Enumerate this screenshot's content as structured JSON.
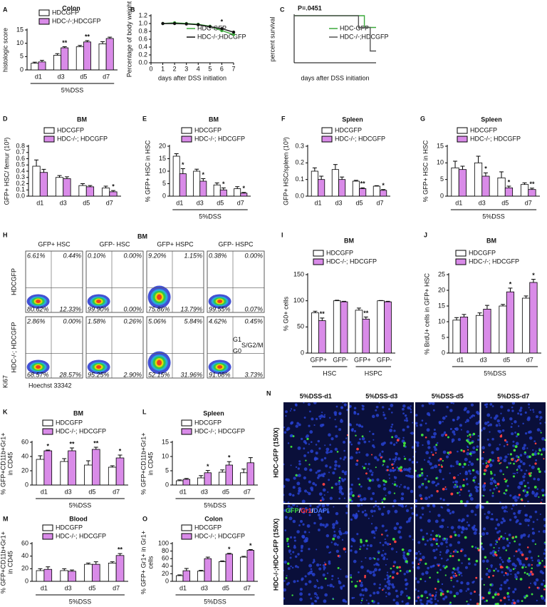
{
  "chart_data": [
    {
      "label": "A",
      "type": "bar",
      "title": "Colon",
      "ylabel": "histologic score",
      "categories": [
        "d1",
        "d3",
        "d5",
        "d7"
      ],
      "group_label": "5%DSS",
      "ylim": [
        0,
        15
      ],
      "yticks": [
        0,
        5,
        10,
        15
      ],
      "series": [
        {
          "name": "HDCGFP",
          "color": "#ffffff",
          "values": [
            2.5,
            5.5,
            8.7,
            9.8
          ],
          "errors": [
            0.4,
            0.6,
            0.5,
            0.8
          ]
        },
        {
          "name": "HDC-/-;HDCGFP",
          "color": "#d98be8",
          "values": [
            3,
            8.3,
            10.5,
            11.8
          ],
          "errors": [
            0.6,
            0.4,
            0.5,
            0.5
          ],
          "significance": [
            null,
            "**",
            "**",
            null
          ]
        }
      ]
    },
    {
      "label": "B",
      "type": "line",
      "ylabel": "Percentage of body weight",
      "xlabel": "days after DSS initiation",
      "markers": true,
      "x": [
        1,
        2,
        3,
        4,
        5,
        6,
        7
      ],
      "xlim": [
        0,
        7
      ],
      "xticks": [
        0,
        1,
        2,
        3,
        4,
        5,
        6,
        7
      ],
      "ylim": [
        0,
        1.2
      ],
      "yticks": [
        {
          "value": 0,
          "label": "0.0"
        },
        0.2,
        0.4,
        0.6,
        0.8,
        {
          "value": 1,
          "label": "1.0"
        },
        1.2
      ],
      "series": [
        {
          "name": "HDC-GFP",
          "color": "#3aa83a",
          "values": [
            1.0,
            1.02,
            1.0,
            0.98,
            0.93,
            0.82,
            0.72
          ]
        },
        {
          "name": "HDC-/-;HDCGFP",
          "color": "#111111",
          "values": [
            1.0,
            1.0,
            0.99,
            0.97,
            0.92,
            0.87,
            0.78
          ],
          "significance": [
            null,
            null,
            null,
            null,
            null,
            "*",
            null
          ]
        }
      ]
    },
    {
      "label": "C",
      "type": "line",
      "title": "P=.0451",
      "ylabel": "percent survival",
      "xlabel": "days after DSS initiation",
      "xlim": [
        0,
        7
      ],
      "ylim": [
        0,
        100
      ],
      "series": [
        {
          "name": "HDC-GFP",
          "color": "#3aa83a",
          "x": [
            0,
            6,
            6,
            7
          ],
          "values": [
            100,
            100,
            75,
            75
          ]
        },
        {
          "name": "HDC-/-;HDCGFP",
          "color": "#555555",
          "x": [
            0,
            5.5,
            5.5,
            6.5,
            6.5,
            7
          ],
          "values": [
            100,
            100,
            75,
            75,
            25,
            25
          ]
        }
      ]
    },
    {
      "label": "D",
      "type": "bar",
      "title": "BM",
      "ylabel": "GFP+ HSC/ femur (10³)",
      "categories": [
        "d1",
        "d3",
        "d5",
        "d7"
      ],
      "ylim": [
        0,
        0.8
      ],
      "yticks": [
        {
          "value": 0,
          "label": "0.0"
        },
        0.1,
        0.2,
        0.3,
        0.4,
        0.5,
        0.6,
        0.7,
        0.8
      ],
      "series": [
        {
          "name": "HDCGFP",
          "color": "#ffffff",
          "values": [
            0.48,
            0.3,
            0.17,
            0.13
          ],
          "errors": [
            0.1,
            0.03,
            0.03,
            0.03
          ]
        },
        {
          "name": "HDC-/-; HDCGFP",
          "color": "#d98be8",
          "values": [
            0.38,
            0.28,
            0.15,
            0.07
          ],
          "errors": [
            0.05,
            0.03,
            0.02,
            0.02
          ],
          "significance": [
            null,
            null,
            null,
            "*"
          ]
        }
      ]
    },
    {
      "label": "E",
      "type": "bar",
      "title": "BM",
      "ylabel": "% GFP+ HSC in HSC",
      "categories": [
        "d1",
        "d3",
        "d5",
        "d7"
      ],
      "group_label": "5%DSS",
      "ylim": [
        0,
        20
      ],
      "yticks": [
        0,
        5,
        10,
        15,
        20
      ],
      "series": [
        {
          "name": "HDCGFP",
          "color": "#ffffff",
          "values": [
            16,
            10,
            4.5,
            3
          ],
          "errors": [
            1,
            0.8,
            0.8,
            0.8
          ]
        },
        {
          "name": "HDC-/-; HDCGFP",
          "color": "#d98be8",
          "values": [
            9,
            6,
            2.5,
            1.2
          ],
          "errors": [
            2,
            1,
            0.8,
            0.3
          ],
          "significance": [
            "*",
            "*",
            "*",
            "*"
          ]
        }
      ]
    },
    {
      "label": "F",
      "type": "bar",
      "title": "Spleen",
      "ylabel": "GFP+ HSC/spleen (10³)",
      "categories": [
        "d1",
        "d3",
        "d5",
        "d7"
      ],
      "ylim": [
        0,
        0.3
      ],
      "yticks": [
        {
          "value": 0,
          "label": "0.0"
        },
        0.1,
        0.2,
        0.3
      ],
      "series": [
        {
          "name": "HDCGFP",
          "color": "#ffffff",
          "values": [
            0.15,
            0.16,
            0.09,
            0.06
          ],
          "errors": [
            0.02,
            0.03,
            0.005,
            0.003
          ]
        },
        {
          "name": "HDC-/-; HDCGFP",
          "color": "#d98be8",
          "values": [
            0.1,
            0.1,
            0.045,
            0.035
          ],
          "errors": [
            0.02,
            0.015,
            0.005,
            0.005
          ],
          "significance": [
            null,
            null,
            "**",
            "*"
          ]
        }
      ]
    },
    {
      "label": "G",
      "type": "bar",
      "title": "Spleen",
      "ylabel": "% GFP+ HSC in HSC",
      "categories": [
        "d1",
        "d3",
        "d5",
        "d7"
      ],
      "group_label": "5%DSS",
      "ylim": [
        0,
        15
      ],
      "yticks": [
        0,
        5,
        10,
        15
      ],
      "series": [
        {
          "name": "HDCGFP",
          "color": "#ffffff",
          "values": [
            8.5,
            10,
            5.5,
            3.5
          ],
          "errors": [
            2,
            2,
            1.8,
            0.5
          ]
        },
        {
          "name": "HDC-/-; HDCGFP",
          "color": "#d98be8",
          "values": [
            8,
            6,
            2.5,
            2
          ],
          "errors": [
            1,
            1,
            0.5,
            0.4
          ],
          "significance": [
            null,
            "*",
            "*",
            "**"
          ]
        }
      ]
    },
    {
      "label": "I",
      "type": "bar",
      "title": "BM",
      "ylabel": "% G0+ cells",
      "categories": [
        "GFP+",
        "GFP-",
        "GFP+",
        "GFP-"
      ],
      "groups": [
        "HSC",
        "HSPC"
      ],
      "ylim": [
        0,
        150
      ],
      "yticks": [
        0,
        50,
        100,
        150
      ],
      "series": [
        {
          "name": "HDCGFP",
          "color": "#ffffff",
          "values": [
            77,
            100,
            82,
            100
          ],
          "errors": [
            3,
            1,
            4,
            0.5
          ]
        },
        {
          "name": "HDC-/-; HDCGFP",
          "color": "#d98be8",
          "values": [
            62,
            98,
            65,
            98
          ],
          "errors": [
            5,
            1,
            4,
            1
          ],
          "significance": [
            "**",
            null,
            "**",
            null
          ]
        }
      ]
    },
    {
      "label": "J",
      "type": "bar",
      "title": "BM",
      "ylabel": "% BrdU+ cells in GFP+ HSC",
      "categories": [
        "d1",
        "d3",
        "d5",
        "d7"
      ],
      "group_label": "5%DSS",
      "ylim": [
        0,
        25
      ],
      "yticks": [
        0,
        5,
        10,
        15,
        20,
        25
      ],
      "series": [
        {
          "name": "HDCGFP",
          "color": "#ffffff",
          "values": [
            10.5,
            12,
            15,
            17.5
          ],
          "errors": [
            0.8,
            0.8,
            0.5,
            0.7
          ]
        },
        {
          "name": "HDC-/-; HDCGFP",
          "color": "#d98be8",
          "values": [
            11.5,
            14,
            19.5,
            22.5
          ],
          "errors": [
            0.8,
            1.2,
            1.2,
            1
          ],
          "significance": [
            null,
            null,
            "*",
            "*"
          ]
        }
      ]
    },
    {
      "label": "K",
      "type": "bar",
      "title": "BM",
      "ylabel": [
        "% GFP+CD11b+Gr1+",
        "in CD45"
      ],
      "categories": [
        "d1",
        "d3",
        "d5",
        "d7"
      ],
      "group_label": "5%DSS",
      "ylim": [
        0,
        60
      ],
      "yticks": [
        0,
        20,
        40,
        60
      ],
      "series": [
        {
          "name": "HDCGFP",
          "color": "#ffffff",
          "values": [
            36,
            33,
            28,
            25
          ],
          "errors": [
            5,
            4,
            6,
            2
          ]
        },
        {
          "name": "HDC-/-; HDCGFP",
          "color": "#d98be8",
          "values": [
            48,
            48,
            50,
            38
          ],
          "errors": [
            1,
            4,
            3,
            4
          ],
          "significance": [
            "*",
            "**",
            "**",
            "*"
          ]
        }
      ]
    },
    {
      "label": "L",
      "type": "bar",
      "title": "Spleen",
      "ylabel": [
        "% GFP+CD11b+Gr1+",
        "in CD45"
      ],
      "categories": [
        "d1",
        "d3",
        "d5",
        "d7"
      ],
      "group_label": "5%DSS",
      "ylim": [
        0,
        15
      ],
      "yticks": [
        0,
        5,
        10,
        15
      ],
      "series": [
        {
          "name": "HDCGFP",
          "color": "#ffffff",
          "values": [
            1.5,
            2.5,
            4.5,
            4.3
          ],
          "errors": [
            0.3,
            0.8,
            0.8,
            1.3
          ]
        },
        {
          "name": "HDC-/-; HDCGFP",
          "color": "#d98be8",
          "values": [
            2,
            4.3,
            7,
            7.8
          ],
          "errors": [
            0.3,
            0.8,
            1.2,
            1.8
          ],
          "significance": [
            null,
            "*",
            "*",
            null
          ]
        }
      ]
    },
    {
      "label": "M",
      "type": "bar",
      "title": "Blood",
      "ylabel": [
        "% GFP+CD11b+Gr1+",
        "in CD45"
      ],
      "categories": [
        "d1",
        "d3",
        "d5",
        "d7"
      ],
      "group_label": "5%DSS",
      "ylim": [
        0,
        60
      ],
      "yticks": [
        0,
        20,
        40,
        60
      ],
      "series": [
        {
          "name": "HDCGFP",
          "color": "#ffffff",
          "values": [
            17,
            17,
            27,
            29
          ],
          "errors": [
            3,
            3,
            2,
            2
          ]
        },
        {
          "name": "HDC-/-; HDCGFP",
          "color": "#d98be8",
          "values": [
            19,
            16,
            27,
            41
          ],
          "errors": [
            4,
            2,
            4,
            3
          ],
          "significance": [
            null,
            null,
            null,
            "**"
          ]
        }
      ]
    },
    {
      "label": "O",
      "type": "bar",
      "title": "Colon",
      "ylabel": [
        "% GFP+ Gr1+ in Gr1+",
        "cells"
      ],
      "categories": [
        "d1",
        "d3",
        "d5",
        "d7"
      ],
      "group_label": "5%DSS",
      "ylim": [
        0,
        100
      ],
      "yticks": [
        0,
        20,
        40,
        60,
        80,
        100
      ],
      "series": [
        {
          "name": "HDCGFP",
          "color": "#ffffff",
          "values": [
            15,
            27,
            52,
            64
          ],
          "errors": [
            2,
            2,
            2,
            2
          ]
        },
        {
          "name": "HDC-/-; HDCGFP",
          "color": "#d98be8",
          "values": [
            28,
            60,
            72,
            82
          ],
          "errors": [
            6,
            4,
            2,
            2
          ],
          "significance": [
            null,
            null,
            "*",
            "*"
          ]
        }
      ]
    }
  ],
  "flow_panel": {
    "label": "H",
    "title": "BM",
    "columns": [
      "GFP+ HSC",
      "GFP- HSC",
      "GFP+ HSPC",
      "GFP- HSPC"
    ],
    "rows": [
      {
        "name": "HDCGFP",
        "plots": [
          [
            "6.61%",
            "0.44%",
            "80.62%",
            "12.33%"
          ],
          [
            "0.10%",
            "0.00%",
            "99.90%",
            "0.00%"
          ],
          [
            "9.20%",
            "1.15%",
            "75.86%",
            "13.79%"
          ],
          [
            "0.38%",
            "0.00%",
            "99.55%",
            "0.07%"
          ]
        ]
      },
      {
        "name": "HDC-/-; HDCGFP",
        "plots": [
          [
            "2.86%",
            "0.00%",
            "68.57%",
            "28.57%"
          ],
          [
            "1.58%",
            "0.26%",
            "95.25%",
            "2.90%"
          ],
          [
            "5.06%",
            "5.84%",
            "52.15%",
            "31.96%"
          ],
          [
            "4.62%",
            "0.45%",
            "91.08%",
            "3.73%"
          ]
        ]
      }
    ],
    "y_axis": "Ki67",
    "x_axis": "Hoechst 33342",
    "gates": [
      "G1",
      "G0",
      "S/G2/M"
    ]
  },
  "image_panel": {
    "label": "N",
    "columns": [
      "5%DSS-d1",
      "5%DSS-d3",
      "5%DSS-d5",
      "5%DSS-d7"
    ],
    "rows": [
      "HDC-GFP (150X)",
      "HDC-/-;HDC-GFP (150X)"
    ],
    "stain_legend": [
      {
        "text": "GFP",
        "color": "#3cdc3c"
      },
      {
        "text": "/",
        "color": "#ffffff"
      },
      {
        "text": "Gr1",
        "color": "#ff3030"
      },
      {
        "text": "/",
        "color": "#ffffff"
      },
      {
        "text": "DAPI",
        "color": "#4a78ff"
      }
    ]
  }
}
